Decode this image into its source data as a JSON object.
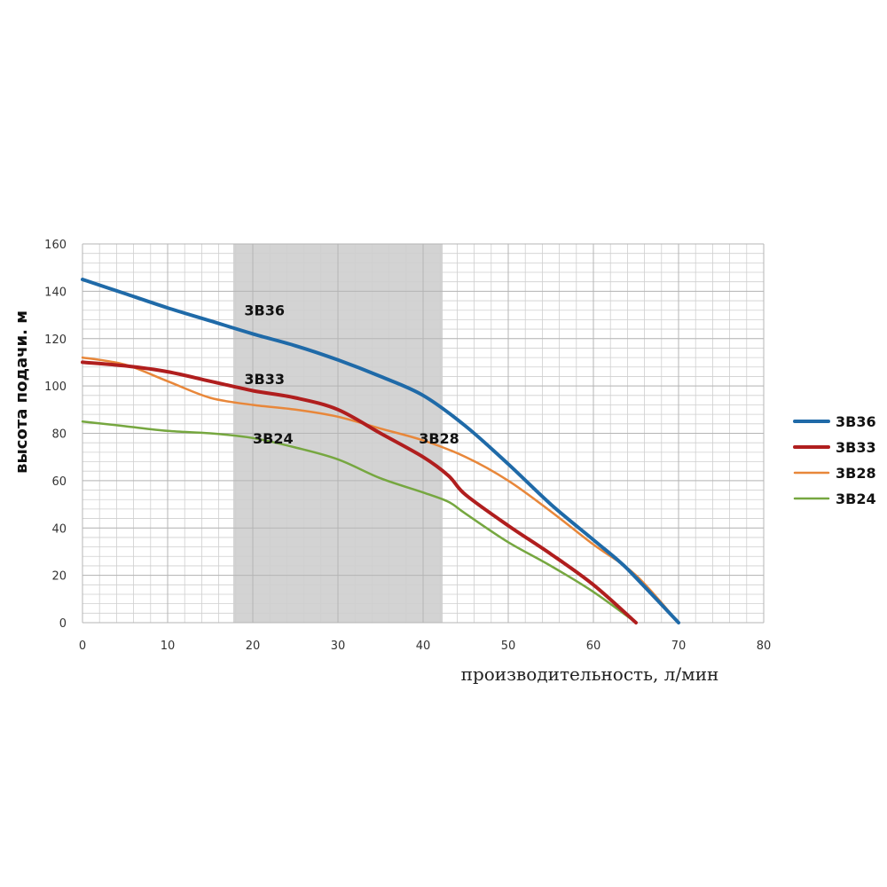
{
  "chart_data": {
    "type": "line",
    "xlabel": "производительность, л/мин",
    "ylabel": "высота подачи. м",
    "xlim": [
      0,
      80
    ],
    "ylim": [
      0,
      160
    ],
    "xticks": [
      "0",
      "10",
      "20",
      "30",
      "40",
      "50",
      "60",
      "70",
      "80"
    ],
    "yticks": [
      "0",
      "20",
      "40",
      "60",
      "80",
      "100",
      "120",
      "140",
      "160"
    ],
    "grid": true,
    "minor_grid": true,
    "highlight_band": {
      "x_from": 17.7,
      "x_to": 42.3,
      "color": "#d3d3d3"
    },
    "legend_position": "right",
    "series": [
      {
        "name": "3B36",
        "color": "#1f6aa8",
        "width": 4,
        "x": [
          0,
          5,
          10,
          15,
          20,
          25,
          30,
          35,
          40,
          45,
          50,
          55,
          60,
          63,
          65,
          70
        ],
        "y": [
          145,
          139,
          133,
          127.5,
          122,
          117,
          111,
          104,
          96,
          83,
          67,
          50,
          35,
          26,
          19,
          0
        ]
      },
      {
        "name": "3B33",
        "color": "#b01e1e",
        "width": 4,
        "x": [
          0,
          5,
          10,
          15,
          20,
          25,
          30,
          35,
          40,
          43,
          45,
          50,
          55,
          60,
          65
        ],
        "y": [
          110,
          108.5,
          106,
          102,
          98,
          95,
          90,
          80,
          70,
          62,
          54,
          41,
          29,
          16,
          0
        ]
      },
      {
        "name": "3B28",
        "color": "#e8873a",
        "width": 2.5,
        "x": [
          0,
          5,
          10,
          15,
          20,
          25,
          30,
          35,
          40,
          45,
          50,
          55,
          60,
          65,
          70
        ],
        "y": [
          112,
          109,
          102,
          95,
          92,
          90,
          87,
          82,
          77,
          70,
          60,
          47,
          33,
          20,
          0
        ]
      },
      {
        "name": "3B24",
        "color": "#76a740",
        "width": 2.5,
        "x": [
          0,
          5,
          10,
          15,
          20,
          25,
          30,
          35,
          40,
          43,
          45,
          50,
          55,
          60,
          65
        ],
        "y": [
          85,
          83,
          81,
          80,
          78,
          74,
          69,
          61,
          55,
          51,
          46,
          34,
          24,
          13,
          0
        ]
      }
    ],
    "annotations": [
      {
        "text": "3B36",
        "x": 19,
        "y": 132
      },
      {
        "text": "3B33",
        "x": 19,
        "y": 103
      },
      {
        "text": "3B24",
        "x": 20,
        "y": 78
      },
      {
        "text": "3B28",
        "x": 39.5,
        "y": 78
      }
    ]
  }
}
